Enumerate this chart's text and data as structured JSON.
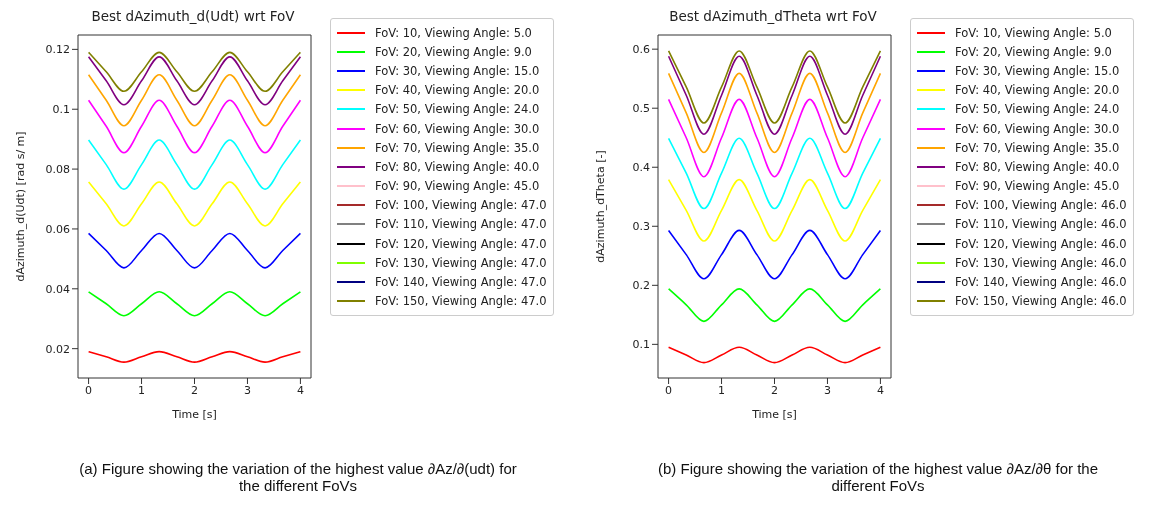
{
  "chart_data": [
    {
      "type": "line",
      "title": "Best dAzimuth_d(Udt) wrt FoV",
      "xlabel": "Time [s]",
      "ylabel": "dAzimuth_d(Udt) [rad s/ m]",
      "x": [
        0,
        0.333,
        0.667,
        1,
        1.333,
        1.667,
        2,
        2.333,
        2.667,
        3,
        3.333,
        3.667,
        4
      ],
      "xlim": [
        -0.2,
        4.2
      ],
      "xticks": [
        0,
        1,
        2,
        3,
        4
      ],
      "ylim": [
        0.0102,
        0.1248
      ],
      "yticks": [
        0.02,
        0.04,
        0.06,
        0.08,
        0.1,
        0.12
      ],
      "grid": false,
      "legend": "right",
      "marker": "none",
      "line_style": "solid",
      "annotations": [
        "(a) Figure showing the variation of the highest value ∂Az/∂(udt) for the different FoVs"
      ],
      "series": [
        {
          "name": "FoV: 10, Viewing Angle: 5.0",
          "color": "#ff0000",
          "values": [
            0.019,
            0.0173,
            0.0155,
            0.0173,
            0.019,
            0.0173,
            0.0155,
            0.0173,
            0.019,
            0.0173,
            0.0155,
            0.0173,
            0.019
          ]
        },
        {
          "name": "FoV: 20, Viewing Angle: 9.0",
          "color": "#00ff00",
          "values": [
            0.039,
            0.035,
            0.031,
            0.035,
            0.039,
            0.035,
            0.031,
            0.035,
            0.039,
            0.035,
            0.031,
            0.035,
            0.039
          ]
        },
        {
          "name": "FoV: 30, Viewing Angle: 15.0",
          "color": "#0000ff",
          "values": [
            0.0585,
            0.0528,
            0.047,
            0.0528,
            0.0585,
            0.0528,
            0.047,
            0.0528,
            0.0585,
            0.0528,
            0.047,
            0.0528,
            0.0585
          ]
        },
        {
          "name": "FoV: 40, Viewing Angle: 20.0",
          "color": "#ffff00",
          "values": [
            0.0757,
            0.0684,
            0.061,
            0.0684,
            0.0757,
            0.0684,
            0.061,
            0.0684,
            0.0757,
            0.0684,
            0.061,
            0.0684,
            0.0757
          ]
        },
        {
          "name": "FoV: 50, Viewing Angle: 24.0",
          "color": "#00ffff",
          "values": [
            0.0897,
            0.0815,
            0.0733,
            0.0815,
            0.0897,
            0.0815,
            0.0733,
            0.0815,
            0.0897,
            0.0815,
            0.0733,
            0.0815,
            0.0897
          ]
        },
        {
          "name": "FoV: 60, Viewing Angle: 30.0",
          "color": "#ff00ff",
          "values": [
            0.103,
            0.0943,
            0.0855,
            0.0943,
            0.103,
            0.0943,
            0.0855,
            0.0943,
            0.103,
            0.0943,
            0.0855,
            0.0943,
            0.103
          ]
        },
        {
          "name": "FoV: 70, Viewing Angle: 35.0",
          "color": "#ffa500",
          "values": [
            0.1115,
            0.103,
            0.0945,
            0.103,
            0.1115,
            0.103,
            0.0945,
            0.103,
            0.1115,
            0.103,
            0.0945,
            0.103,
            0.1115
          ]
        },
        {
          "name": "FoV: 80, Viewing Angle: 40.0",
          "color": "#800080",
          "values": [
            0.1175,
            0.1095,
            0.1015,
            0.1095,
            0.1175,
            0.1095,
            0.1015,
            0.1095,
            0.1175,
            0.1095,
            0.1015,
            0.1095,
            0.1175
          ]
        },
        {
          "name": "FoV: 90, Viewing Angle: 45.0",
          "color": "#ffc0cb",
          "values": [
            null,
            null,
            null,
            null,
            null,
            null,
            null,
            null,
            null,
            null,
            null,
            null,
            null
          ]
        },
        {
          "name": "FoV: 100, Viewing Angle: 47.0",
          "color": "#a52a2a",
          "values": [
            null,
            null,
            null,
            null,
            null,
            null,
            null,
            null,
            null,
            null,
            null,
            null,
            null
          ]
        },
        {
          "name": "FoV: 110, Viewing Angle: 47.0",
          "color": "#808080",
          "values": [
            null,
            null,
            null,
            null,
            null,
            null,
            null,
            null,
            null,
            null,
            null,
            null,
            null
          ]
        },
        {
          "name": "FoV: 120, Viewing Angle: 47.0",
          "color": "#000000",
          "values": [
            null,
            null,
            null,
            null,
            null,
            null,
            null,
            null,
            null,
            null,
            null,
            null,
            null
          ]
        },
        {
          "name": "FoV: 130, Viewing Angle: 47.0",
          "color": "#7fff00",
          "values": [
            null,
            null,
            null,
            null,
            null,
            null,
            null,
            null,
            null,
            null,
            null,
            null,
            null
          ]
        },
        {
          "name": "FoV: 140, Viewing Angle: 47.0",
          "color": "#000080",
          "values": [
            null,
            null,
            null,
            null,
            null,
            null,
            null,
            null,
            null,
            null,
            null,
            null,
            null
          ]
        },
        {
          "name": "FoV: 150, Viewing Angle: 47.0",
          "color": "#808000",
          "values": [
            0.119,
            0.1125,
            0.106,
            0.1125,
            0.119,
            0.1125,
            0.106,
            0.1125,
            0.119,
            0.1125,
            0.106,
            0.1125,
            0.119
          ]
        }
      ]
    },
    {
      "type": "line",
      "title": "Best dAzimuth_dTheta wrt FoV",
      "xlabel": "Time [s]",
      "ylabel": "dAzimuth_dTheta [-]",
      "x": [
        0,
        0.333,
        0.667,
        1,
        1.333,
        1.667,
        2,
        2.333,
        2.667,
        3,
        3.333,
        3.667,
        4
      ],
      "xlim": [
        -0.2,
        4.2
      ],
      "xticks": [
        0,
        1,
        2,
        3,
        4
      ],
      "ylim": [
        0.043,
        0.624
      ],
      "yticks": [
        0.1,
        0.2,
        0.3,
        0.4,
        0.5,
        0.6
      ],
      "grid": false,
      "legend": "right",
      "marker": "none",
      "line_style": "solid",
      "annotations": [
        "(b) Figure showing the variation of the highest value ∂Az/∂θ for the different FoVs"
      ],
      "series": [
        {
          "name": "FoV: 10, Viewing Angle: 5.0",
          "color": "#ff0000",
          "values": [
            0.095,
            0.082,
            0.069,
            0.082,
            0.095,
            0.082,
            0.069,
            0.082,
            0.095,
            0.082,
            0.069,
            0.082,
            0.095
          ]
        },
        {
          "name": "FoV: 20, Viewing Angle: 9.0",
          "color": "#00ff00",
          "values": [
            0.194,
            0.167,
            0.139,
            0.167,
            0.194,
            0.167,
            0.139,
            0.167,
            0.194,
            0.167,
            0.139,
            0.167,
            0.194
          ]
        },
        {
          "name": "FoV: 30, Viewing Angle: 15.0",
          "color": "#0000ff",
          "values": [
            0.293,
            0.252,
            0.211,
            0.252,
            0.293,
            0.252,
            0.211,
            0.252,
            0.293,
            0.252,
            0.211,
            0.252,
            0.293
          ]
        },
        {
          "name": "FoV: 40, Viewing Angle: 20.0",
          "color": "#ffff00",
          "values": [
            0.379,
            0.327,
            0.275,
            0.327,
            0.379,
            0.327,
            0.275,
            0.327,
            0.379,
            0.327,
            0.275,
            0.327,
            0.379
          ]
        },
        {
          "name": "FoV: 50, Viewing Angle: 24.0",
          "color": "#00ffff",
          "values": [
            0.449,
            0.39,
            0.33,
            0.39,
            0.449,
            0.39,
            0.33,
            0.39,
            0.449,
            0.39,
            0.33,
            0.39,
            0.449
          ]
        },
        {
          "name": "FoV: 60, Viewing Angle: 30.0",
          "color": "#ff00ff",
          "values": [
            0.515,
            0.45,
            0.384,
            0.45,
            0.515,
            0.45,
            0.384,
            0.45,
            0.515,
            0.45,
            0.384,
            0.45,
            0.515
          ]
        },
        {
          "name": "FoV: 70, Viewing Angle: 35.0",
          "color": "#ffa500",
          "values": [
            0.559,
            0.492,
            0.425,
            0.492,
            0.559,
            0.492,
            0.425,
            0.492,
            0.559,
            0.492,
            0.425,
            0.492,
            0.559
          ]
        },
        {
          "name": "FoV: 80, Viewing Angle: 40.0",
          "color": "#800080",
          "values": [
            0.588,
            0.522,
            0.456,
            0.522,
            0.588,
            0.522,
            0.456,
            0.522,
            0.588,
            0.522,
            0.456,
            0.522,
            0.588
          ]
        },
        {
          "name": "FoV: 90, Viewing Angle: 45.0",
          "color": "#ffc0cb",
          "values": [
            null,
            null,
            null,
            null,
            null,
            null,
            null,
            null,
            null,
            null,
            null,
            null,
            null
          ]
        },
        {
          "name": "FoV: 100, Viewing Angle: 46.0",
          "color": "#a52a2a",
          "values": [
            null,
            null,
            null,
            null,
            null,
            null,
            null,
            null,
            null,
            null,
            null,
            null,
            null
          ]
        },
        {
          "name": "FoV: 110, Viewing Angle: 46.0",
          "color": "#808080",
          "values": [
            null,
            null,
            null,
            null,
            null,
            null,
            null,
            null,
            null,
            null,
            null,
            null,
            null
          ]
        },
        {
          "name": "FoV: 120, Viewing Angle: 46.0",
          "color": "#000000",
          "values": [
            null,
            null,
            null,
            null,
            null,
            null,
            null,
            null,
            null,
            null,
            null,
            null,
            null
          ]
        },
        {
          "name": "FoV: 130, Viewing Angle: 46.0",
          "color": "#7fff00",
          "values": [
            null,
            null,
            null,
            null,
            null,
            null,
            null,
            null,
            null,
            null,
            null,
            null,
            null
          ]
        },
        {
          "name": "FoV: 140, Viewing Angle: 46.0",
          "color": "#000080",
          "values": [
            null,
            null,
            null,
            null,
            null,
            null,
            null,
            null,
            null,
            null,
            null,
            null,
            null
          ]
        },
        {
          "name": "FoV: 150, Viewing Angle: 46.0",
          "color": "#808000",
          "values": [
            0.597,
            0.536,
            0.475,
            0.536,
            0.597,
            0.536,
            0.475,
            0.536,
            0.597,
            0.536,
            0.475,
            0.536,
            0.597
          ]
        }
      ]
    }
  ]
}
